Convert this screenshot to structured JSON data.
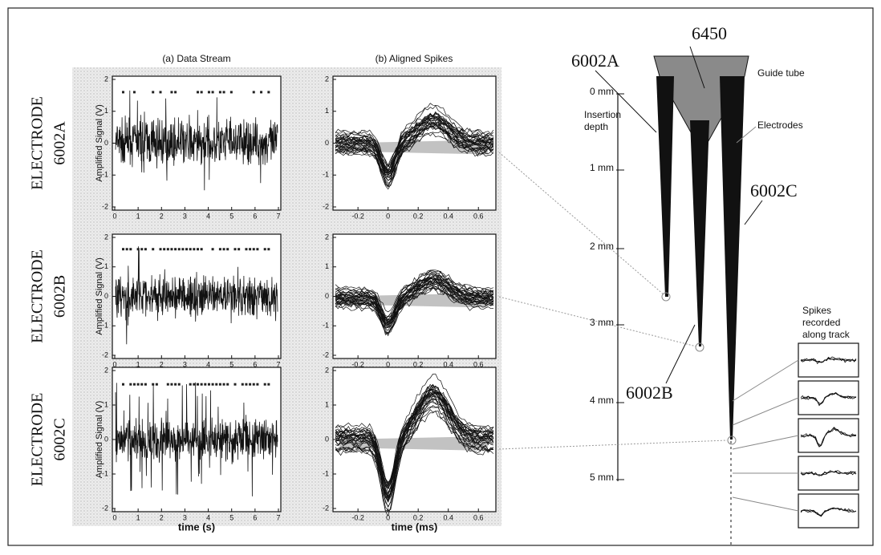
{
  "panel_titles": [
    "(a) Data Stream",
    "(b) Aligned Spikes"
  ],
  "rows": [
    {
      "word": "ELECTRODE",
      "id": "6002A"
    },
    {
      "word": "ELECTRODE",
      "id": "6002B"
    },
    {
      "word": "ELECTRODE",
      "id": "6002C"
    }
  ],
  "y_axis_label": "Amplified Signal (V)",
  "y_ticks": [
    2,
    1,
    0,
    -1,
    -2
  ],
  "stream_x_ticks": [
    0,
    1,
    2,
    3,
    4,
    5,
    6,
    7
  ],
  "spike_x_ticks": [
    -0.2,
    0,
    0.2,
    0.4,
    0.6
  ],
  "x_axis_labels": [
    "time (s)",
    "time (ms)"
  ],
  "probe": {
    "guide_number": "6450",
    "guide_text": "Guide tube",
    "electrodes_text": "Electrodes",
    "insertion_text": "Insertion depth",
    "depths": [
      "0 mm",
      "1 mm",
      "2 mm",
      "3 mm",
      "4 mm",
      "5 mm"
    ],
    "electrode_labels": [
      "6002A",
      "6002B",
      "6002C"
    ],
    "spikes_text": "Spikes recorded along track"
  }
}
